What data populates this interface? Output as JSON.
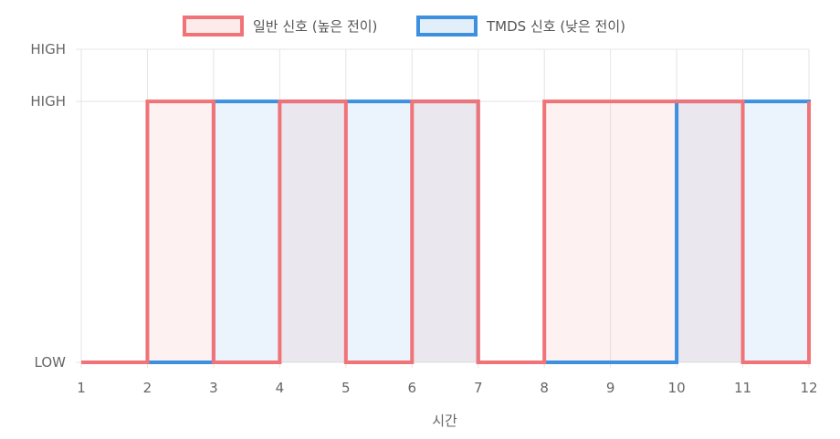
{
  "chart_data": {
    "type": "line",
    "step": true,
    "x": [
      1,
      2,
      3,
      4,
      5,
      6,
      7,
      8,
      9,
      10,
      11,
      12
    ],
    "xlabel": "시간",
    "ylabel": "",
    "y_ticks": [
      {
        "value": 0,
        "label": "LOW"
      },
      {
        "value": 1,
        "label": "HIGH"
      },
      {
        "value": 1.2,
        "label": "HIGH"
      }
    ],
    "ylim": [
      0,
      1.2
    ],
    "xlim": [
      1,
      12
    ],
    "grid": true,
    "legend_position": "top-center",
    "series": [
      {
        "name": "일반 신호 (높은 전이)",
        "color": "#f07378",
        "fill": "rgba(240,115,120,0.10)",
        "values": [
          0,
          1,
          0,
          1,
          0,
          1,
          0,
          1,
          1,
          1,
          0,
          1
        ]
      },
      {
        "name": "TMDS 신호 (낮은 전이)",
        "color": "#3d8fe0",
        "fill": "rgba(61,143,224,0.10)",
        "values": [
          0,
          0,
          1,
          1,
          1,
          1,
          0,
          0,
          0,
          1,
          1,
          0
        ]
      }
    ]
  }
}
